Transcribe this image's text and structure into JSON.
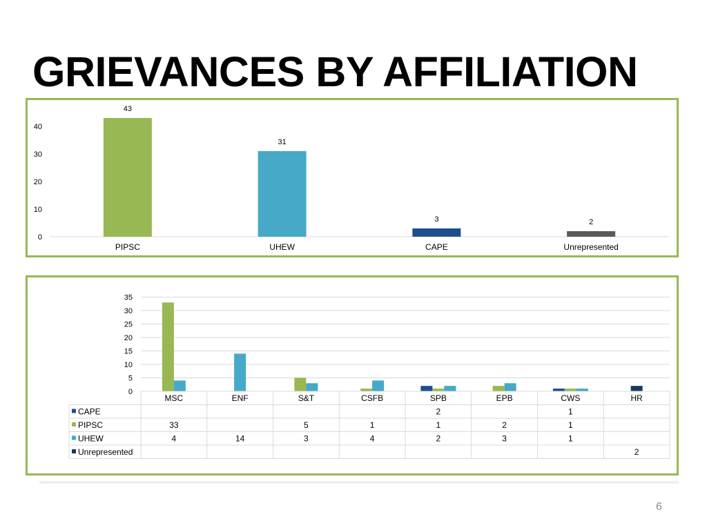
{
  "slide": {
    "title": "GRIEVANCES BY AFFILIATION",
    "page_number": "6"
  },
  "colors": {
    "panel_border": "#97b853",
    "PIPSC": "#97b853",
    "UHEW": "#45a9c7",
    "CAPE": "#1f4e8c",
    "Unrepresented": "#5a5a5a",
    "Unrepresented_series2": "#17375e",
    "grid": "#d9d9d9"
  },
  "chart_data": [
    {
      "type": "bar",
      "title": "",
      "categories": [
        "PIPSC",
        "UHEW",
        "CAPE",
        "Unrepresented"
      ],
      "values": [
        43,
        31,
        3,
        2
      ],
      "data_labels": [
        "43",
        "31",
        "3",
        "2"
      ],
      "y_ticks": [
        "0",
        "10",
        "20",
        "30",
        "40"
      ],
      "ylim": [
        0,
        43
      ],
      "grid": false,
      "legend": "none"
    },
    {
      "type": "bar",
      "title": "",
      "categories": [
        "MSC",
        "ENF",
        "S&T",
        "CSFB",
        "SPB",
        "EPB",
        "CWS",
        "HR"
      ],
      "series": [
        {
          "name": "CAPE",
          "values": [
            null,
            null,
            null,
            null,
            2,
            null,
            1,
            null
          ],
          "table": [
            "",
            "",
            "",
            "",
            "2",
            "",
            "1",
            ""
          ]
        },
        {
          "name": "PIPSC",
          "values": [
            33,
            null,
            5,
            1,
            1,
            2,
            1,
            null
          ],
          "table": [
            "33",
            "",
            "5",
            "1",
            "1",
            "2",
            "1",
            ""
          ]
        },
        {
          "name": "UHEW",
          "values": [
            4,
            14,
            3,
            4,
            2,
            3,
            1,
            null
          ],
          "table": [
            "4",
            "14",
            "3",
            "4",
            "2",
            "3",
            "1",
            ""
          ]
        },
        {
          "name": "Unrepresented",
          "values": [
            null,
            null,
            null,
            null,
            null,
            null,
            null,
            2
          ],
          "table": [
            "",
            "",
            "",
            "",
            "",
            "",
            "",
            "2"
          ]
        }
      ],
      "y_ticks": [
        "0",
        "5",
        "10",
        "15",
        "20",
        "25",
        "30",
        "35"
      ],
      "ylim": [
        0,
        35
      ],
      "grid": true,
      "legend": "data table below chart"
    }
  ]
}
